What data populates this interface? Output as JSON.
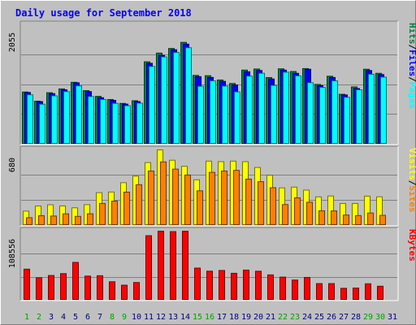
{
  "chart_data": {
    "type": "bar",
    "title": "Daily usage for September 2018",
    "x": [
      "1",
      "2",
      "3",
      "4",
      "5",
      "6",
      "7",
      "8",
      "9",
      "10",
      "11",
      "12",
      "13",
      "14",
      "15",
      "16",
      "17",
      "18",
      "19",
      "20",
      "21",
      "22",
      "23",
      "24",
      "25",
      "26",
      "27",
      "28",
      "29",
      "30",
      "31"
    ],
    "weekend_days": [
      "1",
      "2",
      "8",
      "9",
      "15",
      "16",
      "22",
      "23",
      "29",
      "30"
    ],
    "panels": [
      {
        "name": "top",
        "ymax_label": "2055",
        "ylim": [
          0,
          2055
        ],
        "legend": [
          "Pages",
          "Files",
          "Hits"
        ],
        "series": [
          {
            "name": "Hits",
            "color": "#008040",
            "values": [
              898,
              740,
              886,
              952,
              1065,
              922,
              823,
              769,
              702,
              748,
              1418,
              1568,
              1647,
              1752,
              1184,
              1179,
              1105,
              1045,
              1275,
              1294,
              1147,
              1297,
              1251,
              1301,
              1029,
              1170,
              859,
              986,
              1290,
              1220,
              0
            ]
          },
          {
            "name": "Files",
            "color": "#0000ff",
            "values": [
              890,
              733,
              870,
              936,
              1057,
              905,
              800,
              754,
              690,
              733,
              1392,
              1530,
              1626,
              1722,
              1162,
              1149,
              1082,
              1020,
              1246,
              1268,
              1122,
              1275,
              1219,
              1290,
              1008,
              1148,
              848,
              958,
              1268,
              1198,
              0
            ]
          },
          {
            "name": "Pages",
            "color": "#00ffff",
            "values": [
              850,
              688,
              832,
              905,
              1004,
              820,
              769,
              702,
              662,
              706,
              1338,
              1502,
              1578,
              1660,
              997,
              1090,
              1000,
              900,
              1172,
              1221,
              1011,
              1239,
              1176,
              1058,
              977,
              1090,
              807,
              936,
              1204,
              1154,
              0
            ]
          }
        ]
      },
      {
        "name": "middle",
        "ymax_label": "680",
        "ylim": [
          0,
          680
        ],
        "legend": [
          "Sites",
          "Visits"
        ],
        "series": [
          {
            "name": "Visits",
            "color": "#ffff00",
            "values": [
              129,
              175,
              186,
              176,
              159,
              187,
              295,
              301,
              385,
              444,
              566,
              680,
              587,
              532,
              411,
              579,
              574,
              579,
              574,
              522,
              452,
              338,
              345,
              318,
              257,
              265,
              198,
              198,
              264,
              258,
              0
            ]
          },
          {
            "name": "Sites",
            "color": "#ff8000",
            "values": [
              70,
              88,
              85,
              105,
              82,
              105,
              198,
              219,
              300,
              367,
              490,
              572,
              507,
              454,
              312,
              478,
              490,
              496,
              417,
              394,
              340,
              188,
              249,
              209,
              132,
              131,
              94,
              89,
              112,
              91,
              0
            ]
          }
        ]
      },
      {
        "name": "bottom",
        "ymax_label": "108556",
        "ylim": [
          0,
          108556
        ],
        "legend": [
          "KBytes"
        ],
        "series": [
          {
            "name": "KBytes",
            "color": "#ff0000",
            "values": [
              48800,
              35300,
              38800,
              41800,
              59400,
              37900,
              38500,
              29000,
              23600,
              27800,
              101400,
              108500,
              107800,
              108400,
              50500,
              45600,
              46700,
              42300,
              47300,
              45500,
              39800,
              36300,
              31700,
              35800,
              26100,
              26100,
              18700,
              19100,
              25800,
              22000,
              0
            ]
          }
        ]
      }
    ],
    "colors": {
      "background": "#c0c0c0",
      "plot": "#c0c0c0",
      "grid": "#808080",
      "title": "#0000ff",
      "weekday_label": "#000080",
      "weekend_label": "#00a000"
    }
  }
}
